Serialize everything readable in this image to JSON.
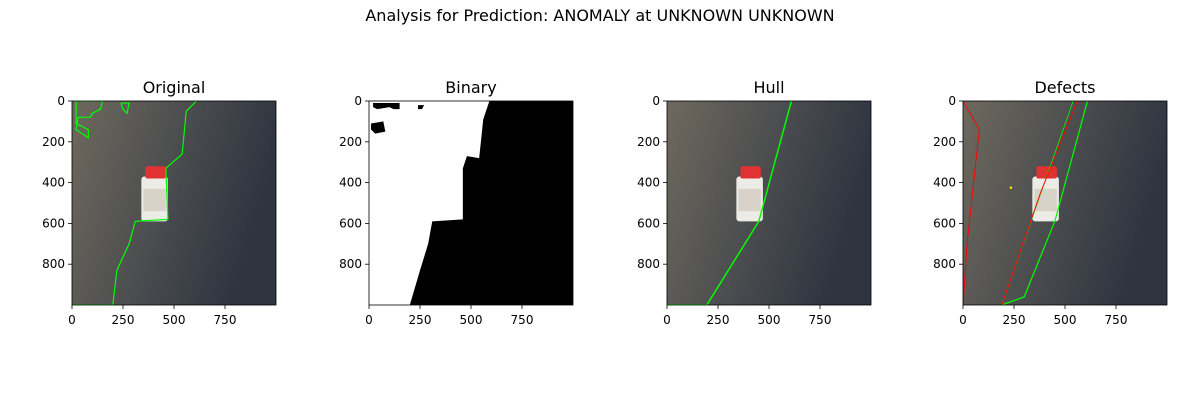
{
  "figure_title": "Analysis for Prediction: ANOMALY at UNKNOWN UNKNOWN",
  "colors": {
    "contour": "#00ff00",
    "defect": "#ff0000",
    "defect_point": "#ffff00",
    "floor_light": "#6e695e",
    "floor_dark": "#2e3440",
    "bottle": "#ecebe6",
    "cap": "#e03232"
  },
  "chart_data": [
    {
      "type": "image",
      "title": "Original",
      "xlim": [
        0,
        1000
      ],
      "ylim": [
        1000,
        0
      ],
      "xticks": [
        0,
        250,
        500,
        750
      ],
      "yticks": [
        0,
        200,
        400,
        600,
        800
      ],
      "overlay": "contour",
      "contour": [
        [
          20,
          0
        ],
        [
          140,
          0
        ],
        [
          140,
          40
        ],
        [
          170,
          60
        ],
        [
          150,
          80
        ],
        [
          140,
          160
        ],
        [
          80,
          180
        ],
        [
          20,
          140
        ],
        [
          20,
          0
        ]
      ]
    },
    {
      "type": "image",
      "title": "Binary",
      "xlim": [
        0,
        1000
      ],
      "ylim": [
        1000,
        0
      ],
      "xticks": [
        0,
        250,
        500,
        750
      ],
      "yticks": [
        0,
        200,
        400,
        600,
        800
      ],
      "overlay": "binary"
    },
    {
      "type": "image",
      "title": "Hull",
      "xlim": [
        0,
        1000
      ],
      "ylim": [
        1000,
        0
      ],
      "xticks": [
        0,
        250,
        500,
        750
      ],
      "yticks": [
        0,
        200,
        400,
        600,
        800
      ],
      "overlay": "hull",
      "hull": [
        [
          0,
          1000
        ],
        [
          195,
          1000
        ],
        [
          450,
          590
        ],
        [
          610,
          0
        ]
      ]
    },
    {
      "type": "image",
      "title": "Defects",
      "xlim": [
        0,
        1000
      ],
      "ylim": [
        1000,
        0
      ],
      "xticks": [
        0,
        250,
        500,
        750
      ],
      "yticks": [
        0,
        200,
        400,
        600,
        800
      ],
      "overlay": "defects",
      "hull": [
        [
          190,
          1000
        ],
        [
          300,
          960
        ],
        [
          450,
          590
        ],
        [
          610,
          0
        ]
      ],
      "defect_lines": [
        [
          [
            0,
            0
          ],
          [
            80,
            140
          ],
          [
            20,
            700
          ],
          [
            0,
            1000
          ]
        ],
        [
          [
            190,
            1000
          ],
          [
            380,
            450
          ],
          [
            560,
            0
          ]
        ]
      ],
      "defect_point": [
        235,
        425
      ]
    }
  ]
}
